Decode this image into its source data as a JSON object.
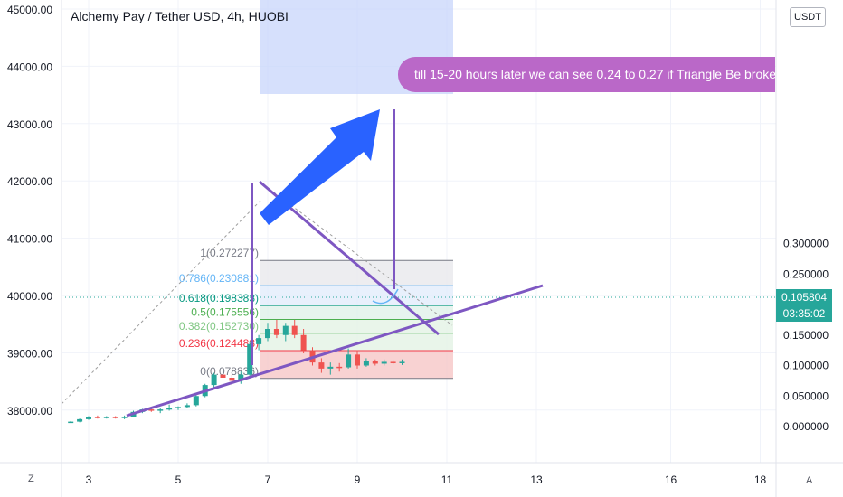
{
  "title": "Alchemy Pay / Tether USD, 4h, HUOBI",
  "currency_badge": "USDT",
  "current_price": "0.105804",
  "countdown": "03:35:02",
  "annotation_text": "till 15-20 hours later we can see 0.24 to 0.27  if Triangle  Be broken",
  "corner_left": "Z",
  "corner_right": "A",
  "colors": {
    "up": "#26a69a",
    "down": "#ef5350",
    "trendline": "#7e57c2",
    "arrow": "#2962ff",
    "annotation_bg": "#ba68c8",
    "projection_bg": "#c8d6fb"
  },
  "chart_data": {
    "type": "candlestick",
    "left_axis": {
      "ticks": [
        "45000.00",
        "44000.00",
        "43000.00",
        "42000.00",
        "41000.00",
        "40000.00",
        "39000.00",
        "38000.00"
      ]
    },
    "right_axis": {
      "ticks": [
        "0.300000",
        "0.250000",
        "0.200000",
        "0.150000",
        "0.100000",
        "0.050000",
        "0.000000"
      ]
    },
    "x_axis": {
      "ticks": [
        "3",
        "5",
        "7",
        "9",
        "11",
        "13",
        "16",
        "18"
      ]
    },
    "fibonacci": [
      {
        "ratio": "0",
        "label": "0(0.078836)",
        "value": 0.078836,
        "color": "#787b86"
      },
      {
        "ratio": "0.236",
        "label": "0.236(0.124488)",
        "value": 0.124488,
        "color": "#f23645"
      },
      {
        "ratio": "0.382",
        "label": "0.382(0.152730)",
        "value": 0.15273,
        "color": "#81c784"
      },
      {
        "ratio": "0.5",
        "label": "0.5(0.175556)",
        "value": 0.175556,
        "color": "#4caf50"
      },
      {
        "ratio": "0.618",
        "label": "0.618(0.198383)",
        "value": 0.198383,
        "color": "#089981"
      },
      {
        "ratio": "0.786",
        "label": "0.786(0.230881)",
        "value": 0.230881,
        "color": "#64b5f6"
      },
      {
        "ratio": "1",
        "label": "1(0.272277)",
        "value": 0.272277,
        "color": "#787b86"
      }
    ],
    "candles": [
      {
        "x": 2.6,
        "o": 0.008,
        "h": 0.009,
        "l": 0.007,
        "c": 0.008
      },
      {
        "x": 2.8,
        "o": 0.008,
        "h": 0.013,
        "l": 0.007,
        "c": 0.012
      },
      {
        "x": 3.0,
        "o": 0.012,
        "h": 0.017,
        "l": 0.011,
        "c": 0.016
      },
      {
        "x": 3.2,
        "o": 0.016,
        "h": 0.018,
        "l": 0.013,
        "c": 0.015
      },
      {
        "x": 3.4,
        "o": 0.015,
        "h": 0.017,
        "l": 0.013,
        "c": 0.016
      },
      {
        "x": 3.6,
        "o": 0.016,
        "h": 0.017,
        "l": 0.013,
        "c": 0.014
      },
      {
        "x": 3.8,
        "o": 0.014,
        "h": 0.018,
        "l": 0.012,
        "c": 0.016
      },
      {
        "x": 4.0,
        "o": 0.016,
        "h": 0.026,
        "l": 0.015,
        "c": 0.024
      },
      {
        "x": 4.2,
        "o": 0.024,
        "h": 0.029,
        "l": 0.022,
        "c": 0.028
      },
      {
        "x": 4.4,
        "o": 0.028,
        "h": 0.03,
        "l": 0.024,
        "c": 0.026
      },
      {
        "x": 4.6,
        "o": 0.026,
        "h": 0.03,
        "l": 0.022,
        "c": 0.028
      },
      {
        "x": 4.8,
        "o": 0.028,
        "h": 0.036,
        "l": 0.026,
        "c": 0.03
      },
      {
        "x": 5.0,
        "o": 0.03,
        "h": 0.033,
        "l": 0.027,
        "c": 0.032
      },
      {
        "x": 5.2,
        "o": 0.032,
        "h": 0.038,
        "l": 0.03,
        "c": 0.035
      },
      {
        "x": 5.4,
        "o": 0.035,
        "h": 0.052,
        "l": 0.033,
        "c": 0.05
      },
      {
        "x": 5.6,
        "o": 0.05,
        "h": 0.07,
        "l": 0.048,
        "c": 0.068
      },
      {
        "x": 5.8,
        "o": 0.068,
        "h": 0.088,
        "l": 0.063,
        "c": 0.085
      },
      {
        "x": 6.0,
        "o": 0.085,
        "h": 0.09,
        "l": 0.065,
        "c": 0.08
      },
      {
        "x": 6.2,
        "o": 0.08,
        "h": 0.085,
        "l": 0.068,
        "c": 0.075
      },
      {
        "x": 6.4,
        "o": 0.075,
        "h": 0.09,
        "l": 0.07,
        "c": 0.085
      },
      {
        "x": 6.6,
        "o": 0.085,
        "h": 0.14,
        "l": 0.08,
        "c": 0.135
      },
      {
        "x": 6.8,
        "o": 0.135,
        "h": 0.15,
        "l": 0.125,
        "c": 0.145
      },
      {
        "x": 7.0,
        "o": 0.145,
        "h": 0.17,
        "l": 0.14,
        "c": 0.16
      },
      {
        "x": 7.2,
        "o": 0.16,
        "h": 0.175,
        "l": 0.145,
        "c": 0.15
      },
      {
        "x": 7.4,
        "o": 0.15,
        "h": 0.17,
        "l": 0.14,
        "c": 0.165
      },
      {
        "x": 7.6,
        "o": 0.165,
        "h": 0.175,
        "l": 0.145,
        "c": 0.15
      },
      {
        "x": 7.8,
        "o": 0.15,
        "h": 0.16,
        "l": 0.12,
        "c": 0.125
      },
      {
        "x": 8.0,
        "o": 0.125,
        "h": 0.13,
        "l": 0.1,
        "c": 0.105
      },
      {
        "x": 8.2,
        "o": 0.105,
        "h": 0.112,
        "l": 0.088,
        "c": 0.095
      },
      {
        "x": 8.4,
        "o": 0.095,
        "h": 0.105,
        "l": 0.085,
        "c": 0.098
      },
      {
        "x": 8.6,
        "o": 0.098,
        "h": 0.104,
        "l": 0.09,
        "c": 0.097
      },
      {
        "x": 8.8,
        "o": 0.097,
        "h": 0.128,
        "l": 0.095,
        "c": 0.118
      },
      {
        "x": 9.0,
        "o": 0.118,
        "h": 0.125,
        "l": 0.095,
        "c": 0.1
      },
      {
        "x": 9.2,
        "o": 0.1,
        "h": 0.112,
        "l": 0.098,
        "c": 0.108
      },
      {
        "x": 9.4,
        "o": 0.108,
        "h": 0.11,
        "l": 0.1,
        "c": 0.103
      },
      {
        "x": 9.6,
        "o": 0.103,
        "h": 0.11,
        "l": 0.1,
        "c": 0.106
      },
      {
        "x": 9.8,
        "o": 0.106,
        "h": 0.109,
        "l": 0.102,
        "c": 0.104
      },
      {
        "x": 10.0,
        "o": 0.104,
        "h": 0.11,
        "l": 0.101,
        "c": 0.106
      }
    ]
  }
}
